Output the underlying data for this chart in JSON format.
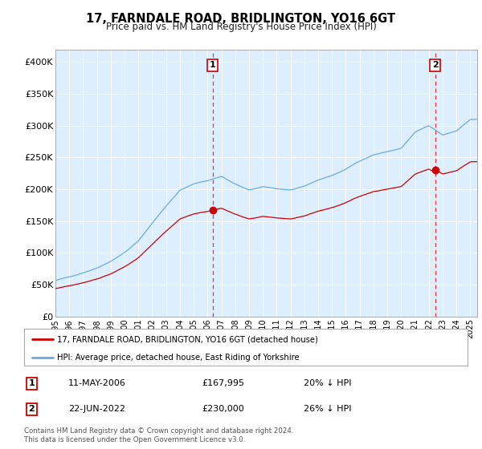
{
  "title": "17, FARNDALE ROAD, BRIDLINGTON, YO16 6GT",
  "subtitle": "Price paid vs. HM Land Registry's House Price Index (HPI)",
  "legend_line1": "17, FARNDALE ROAD, BRIDLINGTON, YO16 6GT (detached house)",
  "legend_line2": "HPI: Average price, detached house, East Riding of Yorkshire",
  "transaction1_date": "11-MAY-2006",
  "transaction1_price": "£167,995",
  "transaction1_hpi": "20% ↓ HPI",
  "transaction2_date": "22-JUN-2022",
  "transaction2_price": "£230,000",
  "transaction2_hpi": "26% ↓ HPI",
  "footer": "Contains HM Land Registry data © Crown copyright and database right 2024.\nThis data is licensed under the Open Government Licence v3.0.",
  "hpi_color": "#6aabe0",
  "price_color": "#cc0000",
  "vline_color": "#ee3333",
  "dot_color": "#cc0000",
  "background_color": "#ffffff",
  "plot_bg_color": "#ddeeff",
  "grid_color": "#ffffff",
  "ylim": [
    0,
    420000
  ],
  "yticks": [
    0,
    50000,
    100000,
    150000,
    200000,
    250000,
    300000,
    350000,
    400000
  ],
  "transaction1_x": 2006.37,
  "transaction2_x": 2022.47,
  "transaction1_y": 167995,
  "transaction2_y": 230000,
  "xmin": 1995.0,
  "xmax": 2025.5
}
